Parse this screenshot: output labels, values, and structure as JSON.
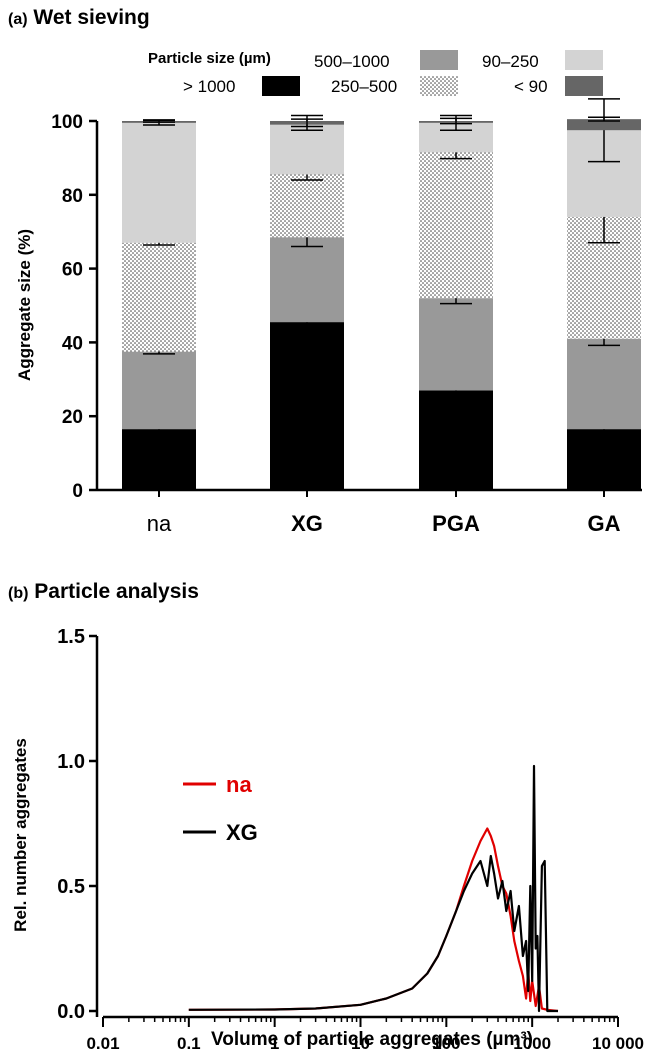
{
  "panel_a": {
    "tag": "(a)",
    "title": "Wet sieving",
    "legend_title": "Particle size (µm)"
  },
  "panel_b": {
    "tag": "(b)",
    "title": "Particle analysis"
  },
  "chart_data": [
    {
      "type": "bar",
      "stacked": true,
      "title": "Wet sieving",
      "ylabel": "Aggregate size (%)",
      "xlabel": "",
      "ylim": [
        0,
        100
      ],
      "yticks": [
        0,
        20,
        40,
        60,
        80,
        100
      ],
      "categories": [
        "na",
        "XG",
        "PGA",
        "GA"
      ],
      "category_bold": [
        false,
        true,
        true,
        true
      ],
      "legend_title": "Particle size (µm)",
      "legend_position": "top",
      "series": [
        {
          "name": "> 1000",
          "color": "#000000",
          "pattern": "solid",
          "values": [
            16.5,
            45.5,
            27.0,
            16.5
          ],
          "errors": [
            0.6,
            4.5,
            3.5,
            1.6
          ]
        },
        {
          "name": "500–1000",
          "color": "#999999",
          "pattern": "solid",
          "values": [
            21.0,
            23.0,
            25.0,
            24.5
          ],
          "errors": [
            0.6,
            2.5,
            1.5,
            1.8
          ]
        },
        {
          "name": "250–500",
          "color": "#ffffff",
          "pattern": "dotted",
          "values": [
            29.5,
            17.0,
            39.5,
            33.0
          ],
          "errors": [
            0.6,
            1.5,
            1.7,
            7.0
          ]
        },
        {
          "name": "90–250",
          "color": "#d3d3d3",
          "pattern": "solid",
          "values": [
            32.5,
            13.5,
            8.0,
            23.5
          ],
          "errors": [
            0.6,
            1.5,
            2.0,
            8.5
          ]
        },
        {
          "name": "< 90",
          "color": "#666666",
          "pattern": "solid",
          "values": [
            0.5,
            1.0,
            0.5,
            3.0
          ],
          "errors": [
            0.3,
            1.5,
            0.7,
            0.5
          ]
        }
      ]
    },
    {
      "type": "line",
      "title": "Particle analysis",
      "xlabel": "Volume of particle aggregates (µm³)",
      "ylabel": "Rel. number aggregates",
      "xscale": "log",
      "xlim": [
        0.01,
        10000
      ],
      "xtick_labels": [
        "0.01",
        "0.1",
        "1",
        "10",
        "100",
        "1000",
        "10 000"
      ],
      "ylim": [
        0,
        1.6
      ],
      "ytick_labels": [
        "0.0",
        "0.5",
        "1.0",
        "1.5"
      ],
      "legend_position": "middle-left",
      "series": [
        {
          "name": "na",
          "color": "#e00000",
          "x": [
            0.1,
            1,
            3,
            10,
            20,
            40,
            60,
            80,
            100,
            130,
            160,
            200,
            250,
            300,
            330,
            360,
            400,
            450,
            500,
            560,
            620,
            700,
            780,
            850,
            900,
            950,
            1000,
            1100,
            1200,
            1300,
            1500,
            2000
          ],
          "y": [
            0.005,
            0.006,
            0.01,
            0.025,
            0.05,
            0.09,
            0.15,
            0.22,
            0.3,
            0.4,
            0.5,
            0.6,
            0.68,
            0.73,
            0.7,
            0.66,
            0.58,
            0.5,
            0.47,
            0.38,
            0.28,
            0.2,
            0.14,
            0.05,
            0.16,
            0.04,
            0.12,
            0.02,
            0.1,
            0.01,
            0.005,
            0.0
          ]
        },
        {
          "name": "XG",
          "color": "#000000",
          "x": [
            0.1,
            1,
            3,
            10,
            20,
            40,
            60,
            80,
            100,
            130,
            160,
            200,
            250,
            300,
            330,
            360,
            400,
            450,
            500,
            560,
            620,
            700,
            780,
            850,
            900,
            950,
            1000,
            1050,
            1100,
            1150,
            1200,
            1300,
            1400,
            1500,
            1700,
            2000
          ],
          "y": [
            0.005,
            0.006,
            0.01,
            0.025,
            0.05,
            0.09,
            0.15,
            0.22,
            0.3,
            0.4,
            0.48,
            0.55,
            0.6,
            0.5,
            0.62,
            0.55,
            0.45,
            0.52,
            0.4,
            0.48,
            0.32,
            0.42,
            0.22,
            0.28,
            0.08,
            0.5,
            0.12,
            0.98,
            0.25,
            0.3,
            0.0,
            0.58,
            0.6,
            0.0,
            0.0,
            0.0
          ]
        }
      ]
    }
  ]
}
